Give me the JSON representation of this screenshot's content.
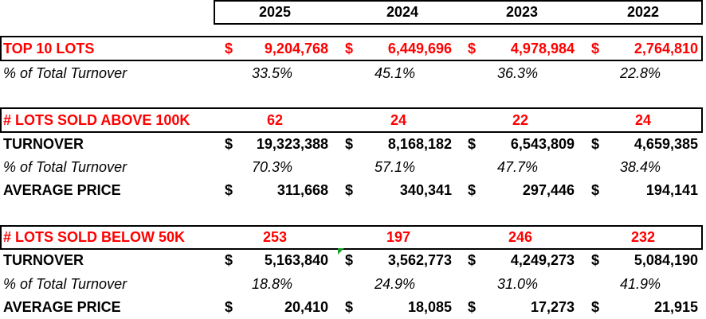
{
  "years": [
    "2025",
    "2024",
    "2023",
    "2022"
  ],
  "top10": {
    "label": "TOP 10 LOTS",
    "currency": "$",
    "values": [
      "9,204,768",
      "6,449,696",
      "4,978,984",
      "2,764,810"
    ],
    "pct_label": "% of Total Turnover",
    "pct": [
      "33.5%",
      "45.1%",
      "36.3%",
      "22.8%"
    ]
  },
  "above100k": {
    "label": "# LOTS SOLD ABOVE 100K",
    "counts": [
      "62",
      "24",
      "22",
      "24"
    ],
    "turnover_label": "TURNOVER",
    "currency": "$",
    "turnover": [
      "19,323,388",
      "8,168,182",
      "6,543,809",
      "4,659,385"
    ],
    "pct_label": "% of Total Turnover",
    "pct": [
      "70.3%",
      "57.1%",
      "47.7%",
      "38.4%"
    ],
    "avg_label": "AVERAGE PRICE",
    "avg": [
      "311,668",
      "340,341",
      "297,446",
      "194,141"
    ]
  },
  "below50k": {
    "label": "# LOTS SOLD BELOW 50K",
    "counts": [
      "253",
      "197",
      "246",
      "232"
    ],
    "turnover_label": "TURNOVER",
    "currency": "$",
    "turnover": [
      "5,163,840",
      "3,562,773",
      "4,249,273",
      "5,084,190"
    ],
    "pct_label": "% of Total Turnover",
    "pct": [
      "18.8%",
      "24.9%",
      "31.0%",
      "41.9%"
    ],
    "avg_label": "AVERAGE PRICE",
    "avg": [
      "20,410",
      "18,085",
      "17,273",
      "21,915"
    ]
  },
  "colors": {
    "highlight": "#ff0000",
    "text": "#000000",
    "comment_marker": "#1a9e2a"
  }
}
